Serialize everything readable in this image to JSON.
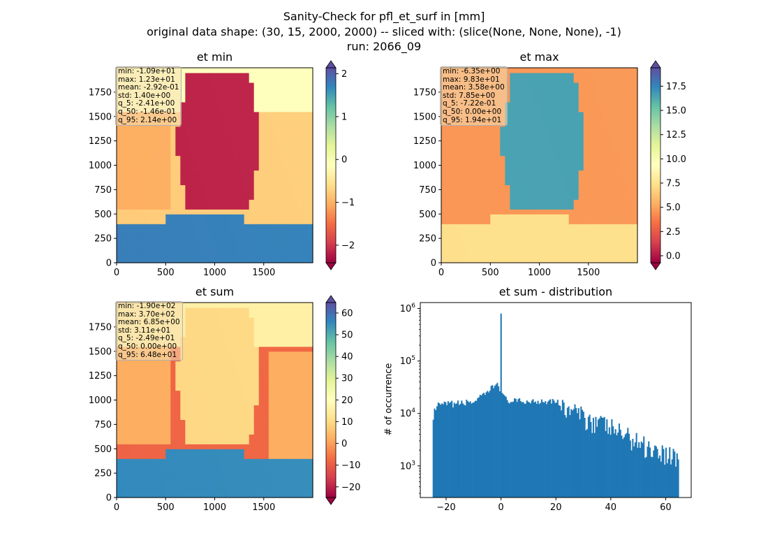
{
  "header": {
    "title_line1": "Sanity-Check for pfl_et_surf in [mm]",
    "title_line2": "original data shape: (30, 15, 2000, 2000) -- sliced with: (slice(None, None, None), -1)",
    "title_line3": "run: 2066_09"
  },
  "colors": {
    "colormap": "Spectral",
    "colormap_stops": [
      "#9e0142",
      "#d53e4f",
      "#f46d43",
      "#fdae61",
      "#fee08b",
      "#ffffbf",
      "#e6f598",
      "#abdda4",
      "#66c2a5",
      "#3288bd",
      "#5e4fa2"
    ],
    "histogram_bar": "#1f77b4"
  },
  "chart_data": [
    {
      "type": "heatmap",
      "title": "et min",
      "x_ticks": [
        "0",
        "500",
        "1000",
        "1500"
      ],
      "y_ticks": [
        "0",
        "250",
        "500",
        "750",
        "1000",
        "1250",
        "1500",
        "1750"
      ],
      "xlim": [
        0,
        2000
      ],
      "ylim": [
        0,
        2000
      ],
      "colorbar": {
        "range": [
          -2.41,
          2.14
        ],
        "ticks": [
          "−2",
          "−1",
          "0",
          "1",
          "2"
        ],
        "tick_values": [
          -2,
          -1,
          0,
          1,
          2
        ],
        "extend": "both"
      },
      "stats": [
        "min: -1.09e+01",
        "max: 1.23e+01",
        "mean: -2.92e-01",
        "std: 1.40e+00",
        "q_5: -2.41e+00",
        "q_50: -1.46e-01",
        "q_95: 2.14e+00"
      ]
    },
    {
      "type": "heatmap",
      "title": "et max",
      "x_ticks": [
        "0",
        "500",
        "1000",
        "1500"
      ],
      "y_ticks": [
        "0",
        "250",
        "500",
        "750",
        "1000",
        "1250",
        "1500",
        "1750"
      ],
      "xlim": [
        0,
        2000
      ],
      "ylim": [
        0,
        2000
      ],
      "colorbar": {
        "range": [
          -0.722,
          19.4
        ],
        "ticks": [
          "0.0",
          "2.5",
          "5.0",
          "7.5",
          "10.0",
          "12.5",
          "15.0",
          "17.5"
        ],
        "tick_values": [
          0,
          2.5,
          5,
          7.5,
          10,
          12.5,
          15,
          17.5
        ],
        "extend": "both"
      },
      "stats": [
        "min: -6.35e+00",
        "max: 9.83e+01",
        "mean: 3.58e+00",
        "std: 7.85e+00",
        "q_5: -7.22e-01",
        "q_50: 0.00e+00",
        "q_95: 1.94e+01"
      ]
    },
    {
      "type": "heatmap",
      "title": "et sum",
      "x_ticks": [
        "0",
        "500",
        "1000",
        "1500"
      ],
      "y_ticks": [
        "0",
        "250",
        "500",
        "750",
        "1000",
        "1250",
        "1500",
        "1750"
      ],
      "xlim": [
        0,
        2000
      ],
      "ylim": [
        0,
        2000
      ],
      "colorbar": {
        "range": [
          -24.9,
          64.8
        ],
        "ticks": [
          "−20",
          "−10",
          "0",
          "10",
          "20",
          "30",
          "40",
          "50",
          "60"
        ],
        "tick_values": [
          -20,
          -10,
          0,
          10,
          20,
          30,
          40,
          50,
          60
        ],
        "extend": "both"
      },
      "stats": [
        "min: -1.90e+02",
        "max: 3.70e+02",
        "mean: 6.85e+00",
        "std: 3.11e+01",
        "q_5: -2.49e+01",
        "q_50: 0.00e+00",
        "q_95: 6.48e+01"
      ]
    },
    {
      "type": "bar",
      "title": "et sum - distribution",
      "ylabel": "# of occurrence",
      "xlabel": "",
      "yscale": "log",
      "xlim": [
        -29.4,
        69.3
      ],
      "ylim": [
        250,
        1300000
      ],
      "x_ticks": [
        "−20",
        "0",
        "20",
        "40",
        "60"
      ],
      "x_tick_values": [
        -20,
        0,
        20,
        40,
        60
      ],
      "y_ticks": [
        "10^3",
        "10^4",
        "10^5",
        "10^6"
      ],
      "y_tick_values": [
        1000,
        10000,
        100000,
        1000000
      ],
      "bin_range": [
        -24.9,
        64.8
      ],
      "peak_at_zero": 800000,
      "profile_x": [
        -24.9,
        -24,
        -23,
        -20,
        -15,
        -10,
        -6,
        -3,
        -1,
        0.5,
        2,
        5,
        10,
        15,
        20,
        22,
        25,
        30,
        35,
        40,
        45,
        50,
        55,
        60,
        64.8
      ],
      "profile_y": [
        8000,
        12000,
        14000,
        15000,
        15500,
        17000,
        22000,
        32000,
        38000,
        22000,
        18000,
        17000,
        17000,
        17500,
        18000,
        13000,
        12000,
        9000,
        7000,
        5500,
        4000,
        3000,
        2200,
        1800,
        1500
      ]
    }
  ]
}
